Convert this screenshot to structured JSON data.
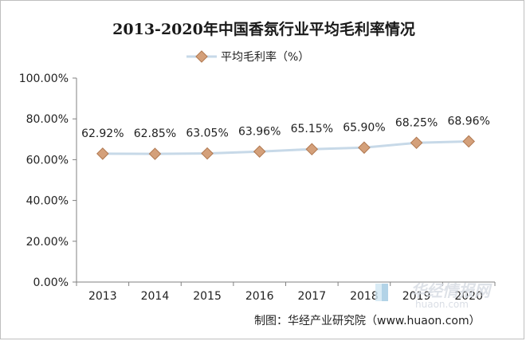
{
  "chart_data": {
    "type": "line",
    "title": "2013-2020年中国香氛行业平均毛利率情况",
    "categories": [
      "2013",
      "2014",
      "2015",
      "2016",
      "2017",
      "2018",
      "2019",
      "2020"
    ],
    "series": [
      {
        "name": "平均毛利率（%）",
        "values": [
          62.92,
          62.85,
          63.05,
          63.96,
          65.15,
          65.9,
          68.25,
          68.96
        ],
        "labels": [
          "62.92%",
          "62.85%",
          "63.05%",
          "63.96%",
          "65.15%",
          "65.90%",
          "68.25%",
          "68.96%"
        ]
      }
    ],
    "ylim": [
      0,
      100
    ],
    "yticks": [
      "0.00%",
      "20.00%",
      "40.00%",
      "60.00%",
      "80.00%",
      "100.00%"
    ],
    "legend_position": "top-center",
    "grid": false,
    "colors": {
      "line": "#c7d9e8",
      "marker": "#d4a07a",
      "marker_stroke": "#b07850"
    }
  },
  "source": "制图：华经产业研究院（www.huaon.com）",
  "watermark": {
    "name": "华经情报网",
    "url": "huaon.com"
  }
}
